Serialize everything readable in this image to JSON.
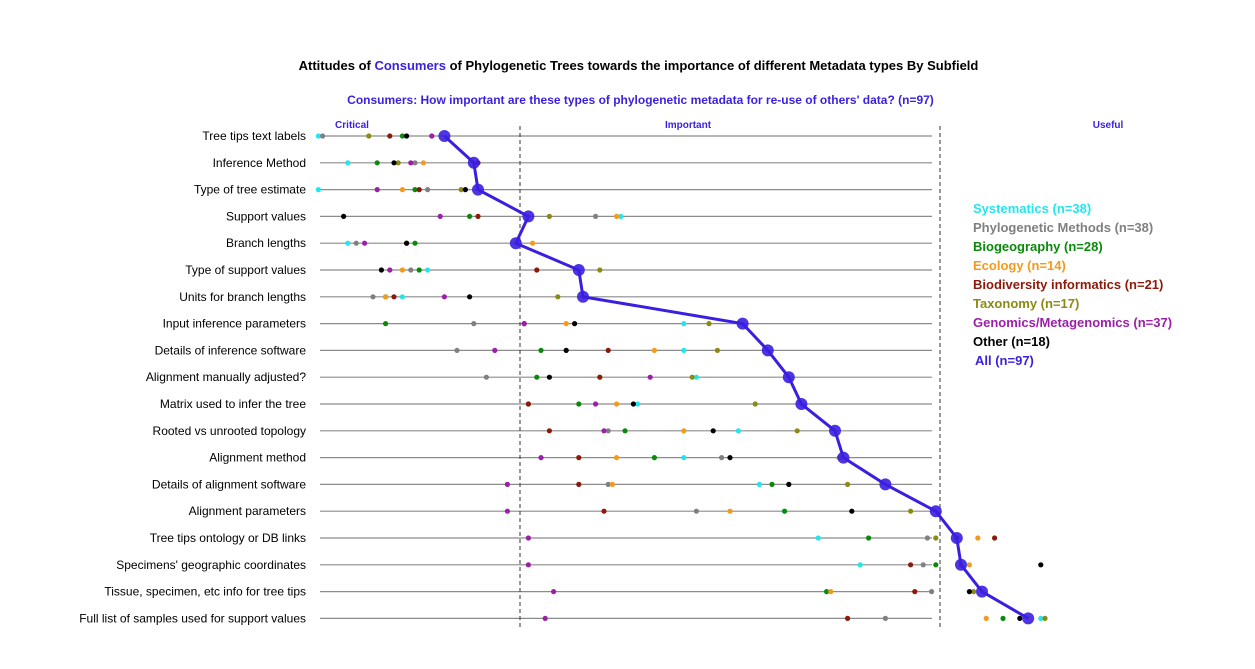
{
  "chart_data": {
    "type": "scatter",
    "title_parts": [
      "Attitudes of ",
      "Consumers",
      " of Phylogenetic Trees towards the importance of different Metadata types By Subfield"
    ],
    "subtitle": "Consumers: How important are these types of phylogenetic metadata for re-use of others' data? (n=97)",
    "xlabel": "",
    "ylabel": "",
    "xlim": [
      1,
      3.5
    ],
    "region_labels": [
      {
        "label": "Critical",
        "x": 1.1
      },
      {
        "label": "Important",
        "x": 1.9
      },
      {
        "label": "Useful",
        "x": 2.9
      }
    ],
    "dividers": [
      1.5,
      2.5
    ],
    "grid": true,
    "legend_placement": "right",
    "categories": [
      "Tree tips text labels",
      "Inference Method",
      "Type of tree estimate",
      "Support values",
      "Branch lengths",
      "Type of support values",
      "Units for branch lengths",
      "Input inference parameters",
      "Details of inference software",
      "Alignment manually adjusted?",
      "Matrix used to infer the tree",
      "Rooted vs unrooted topology",
      "Alignment method",
      "Details of alignment software",
      "Alignment parameters",
      "Tree tips ontology or DB links",
      "Specimens' geographic coordinates",
      "Tissue, specimen, etc info for tree tips",
      "Full list of samples used for support values"
    ],
    "series": [
      {
        "name": "Systematics (n=38)",
        "color": "#22e6ee",
        "values": [
          1.02,
          1.09,
          1.02,
          1.74,
          1.09,
          1.28,
          1.22,
          1.89,
          1.89,
          1.92,
          1.78,
          2.02,
          1.89,
          2.07,
          2.13,
          2.21,
          2.31,
          2.23,
          2.74
        ]
      },
      {
        "name": "Phylogenetic Methods (n=38)",
        "color": "#808080",
        "values": [
          1.03,
          1.25,
          1.28,
          1.68,
          1.11,
          1.24,
          1.15,
          1.39,
          1.35,
          1.42,
          1.52,
          1.71,
          1.98,
          1.71,
          1.92,
          2.47,
          2.46,
          2.48,
          2.37
        ]
      },
      {
        "name": "Biogeography (n=28)",
        "color": "#0a8a0a",
        "values": [
          1.22,
          1.16,
          1.25,
          1.38,
          1.25,
          1.26,
          1.18,
          1.18,
          1.55,
          1.54,
          1.64,
          1.75,
          1.82,
          2.1,
          2.13,
          2.33,
          2.49,
          2.23,
          2.65
        ]
      },
      {
        "name": "Ecology (n=14)",
        "color": "#f39a1b",
        "values": [
          1.29,
          1.27,
          1.22,
          1.73,
          1.53,
          1.22,
          1.18,
          1.61,
          1.82,
          1.69,
          1.73,
          1.89,
          1.73,
          1.72,
          2.0,
          2.59,
          2.57,
          2.24,
          2.61
        ]
      },
      {
        "name": "Biodiversity informatics (n=21)",
        "color": "#8b1a0a",
        "values": [
          1.19,
          1.4,
          1.26,
          1.4,
          1.23,
          1.54,
          1.2,
          1.51,
          1.71,
          1.69,
          1.52,
          1.57,
          1.64,
          1.64,
          1.7,
          2.63,
          2.43,
          2.44,
          2.28
        ]
      },
      {
        "name": "Taxonomy (n=17)",
        "color": "#8a8a14",
        "values": [
          1.14,
          1.21,
          1.36,
          1.57,
          1.23,
          1.69,
          1.59,
          1.95,
          1.97,
          1.91,
          2.06,
          2.16,
          2.26,
          2.28,
          2.43,
          2.49,
          2.55,
          2.58,
          2.75
        ]
      },
      {
        "name": "Genomics/Metagenomics (n=37)",
        "color": "#9b1fa8",
        "values": [
          1.29,
          1.24,
          1.16,
          1.31,
          1.13,
          1.19,
          1.32,
          1.51,
          1.44,
          1.81,
          1.68,
          1.7,
          1.55,
          1.47,
          1.47,
          1.52,
          1.52,
          1.58,
          1.56
        ]
      },
      {
        "name": "Other (n=18)",
        "color": "#000000",
        "values": [
          1.23,
          1.2,
          1.37,
          1.08,
          1.23,
          1.17,
          1.38,
          1.63,
          1.61,
          1.57,
          1.77,
          1.96,
          2.0,
          2.14,
          2.29,
          2.54,
          2.74,
          2.57,
          2.69
        ]
      },
      {
        "name": "All (n=97)",
        "color": "#3b1fe0",
        "values": [
          1.32,
          1.39,
          1.4,
          1.52,
          1.49,
          1.64,
          1.65,
          2.03,
          2.09,
          2.14,
          2.17,
          2.25,
          2.27,
          2.37,
          2.49,
          2.54,
          2.55,
          2.6,
          2.71
        ]
      }
    ]
  }
}
